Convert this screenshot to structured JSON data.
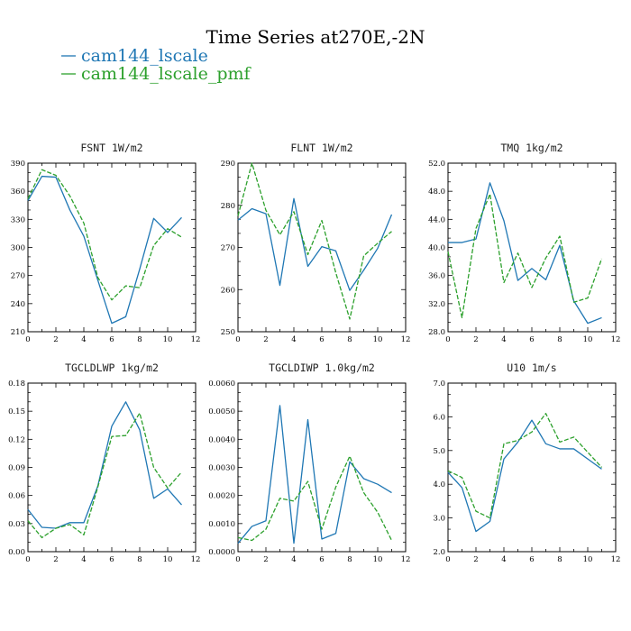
{
  "title": "Time Series at270E,-2N",
  "legend": [
    {
      "label": "cam144_lscale",
      "color": "#1f77b4",
      "dash": "solid"
    },
    {
      "label": "cam144_lscale_pmf",
      "color": "#2ca02c",
      "dash": "dashed"
    }
  ],
  "chart_data": [
    {
      "type": "line",
      "title": "FSNT  1W/m2",
      "x": [
        0,
        1,
        2,
        3,
        4,
        5,
        6,
        7,
        8,
        9,
        10,
        11
      ],
      "xticks": [
        "0",
        "2",
        "4",
        "6",
        "8",
        "10",
        "12"
      ],
      "xlim": [
        0,
        12
      ],
      "ylim": [
        210,
        390
      ],
      "yticks": [
        "210",
        "240",
        "270",
        "300",
        "330",
        "360",
        "390"
      ],
      "series": [
        {
          "name": "cam144_lscale",
          "values": [
            350,
            376,
            375,
            340,
            312,
            265,
            219,
            226,
            277,
            331,
            316,
            332
          ]
        },
        {
          "name": "cam144_lscale_pmf",
          "values": [
            352,
            383,
            377,
            355,
            326,
            268,
            244,
            259,
            257,
            302,
            320,
            311
          ]
        }
      ]
    },
    {
      "type": "line",
      "title": "FLNT  1W/m2",
      "x": [
        0,
        1,
        2,
        3,
        4,
        5,
        6,
        7,
        8,
        9,
        10,
        11
      ],
      "xticks": [
        "0",
        "2",
        "4",
        "6",
        "8",
        "10",
        "12"
      ],
      "xlim": [
        0,
        12
      ],
      "ylim": [
        250,
        290
      ],
      "yticks": [
        "250",
        "260",
        "270",
        "280",
        "290"
      ],
      "series": [
        {
          "name": "cam144_lscale",
          "values": [
            276.5,
            279.2,
            278,
            261,
            281.6,
            265.5,
            270.2,
            269.2,
            259.8,
            264.6,
            269.8,
            277.8
          ]
        },
        {
          "name": "cam144_lscale_pmf",
          "values": [
            277.5,
            290,
            278.8,
            273,
            278.5,
            268.3,
            276.4,
            264,
            253,
            268,
            271,
            273.8
          ]
        }
      ]
    },
    {
      "type": "line",
      "title": "TMQ  1kg/m2",
      "x": [
        0,
        1,
        2,
        3,
        4,
        5,
        6,
        7,
        8,
        9,
        10,
        11
      ],
      "xticks": [
        "0",
        "2",
        "4",
        "6",
        "8",
        "10",
        "12"
      ],
      "xlim": [
        0,
        12
      ],
      "ylim": [
        28,
        52
      ],
      "yticks": [
        "28.0",
        "32.0",
        "36.0",
        "40.0",
        "44.0",
        "48.0",
        "52.0"
      ],
      "series": [
        {
          "name": "cam144_lscale",
          "values": [
            40.7,
            40.7,
            41.2,
            49.2,
            43.8,
            35.3,
            37,
            35.4,
            40.3,
            32.4,
            29.2,
            30
          ]
        },
        {
          "name": "cam144_lscale_pmf",
          "values": [
            39.4,
            30,
            42.7,
            47.6,
            35,
            39.2,
            34.3,
            38.5,
            41.6,
            32.2,
            32.8,
            38.4
          ]
        }
      ]
    },
    {
      "type": "line",
      "title": "TGCLDLWP  1kg/m2",
      "x": [
        0,
        1,
        2,
        3,
        4,
        5,
        6,
        7,
        8,
        9,
        10,
        11
      ],
      "xticks": [
        "0",
        "2",
        "4",
        "6",
        "8",
        "10",
        "12"
      ],
      "xlim": [
        0,
        12
      ],
      "ylim": [
        0,
        0.18
      ],
      "yticks": [
        "0.00",
        "0.03",
        "0.06",
        "0.09",
        "0.12",
        "0.15",
        "0.18"
      ],
      "series": [
        {
          "name": "cam144_lscale",
          "values": [
            0.045,
            0.026,
            0.025,
            0.031,
            0.031,
            0.07,
            0.134,
            0.16,
            0.13,
            0.057,
            0.067,
            0.05
          ]
        },
        {
          "name": "cam144_lscale_pmf",
          "values": [
            0.033,
            0.015,
            0.025,
            0.029,
            0.018,
            0.069,
            0.123,
            0.124,
            0.148,
            0.09,
            0.068,
            0.085
          ]
        }
      ]
    },
    {
      "type": "line",
      "title": "TGCLDIWP  1.0kg/m2",
      "x": [
        0,
        1,
        2,
        3,
        4,
        5,
        6,
        7,
        8,
        9,
        10,
        11
      ],
      "xticks": [
        "0",
        "2",
        "4",
        "6",
        "8",
        "10",
        "12"
      ],
      "xlim": [
        0,
        12
      ],
      "ylim": [
        0,
        0.006
      ],
      "yticks": [
        "0.0000",
        "0.0010",
        "0.0020",
        "0.0030",
        "0.0040",
        "0.0050",
        "0.0060"
      ],
      "series": [
        {
          "name": "cam144_lscale",
          "values": [
            0.0003,
            0.0009,
            0.0011,
            0.0052,
            0.0003,
            0.0047,
            0.00045,
            0.00065,
            0.0032,
            0.0026,
            0.0024,
            0.0021
          ]
        },
        {
          "name": "cam144_lscale_pmf",
          "values": [
            0.0005,
            0.0004,
            0.0008,
            0.0019,
            0.0018,
            0.0025,
            0.0008,
            0.0023,
            0.0034,
            0.0021,
            0.0014,
            0.0004
          ]
        }
      ]
    },
    {
      "type": "line",
      "title": "U10  1m/s",
      "x": [
        0,
        1,
        2,
        3,
        4,
        5,
        6,
        7,
        8,
        9,
        10,
        11
      ],
      "xticks": [
        "0",
        "2",
        "4",
        "6",
        "8",
        "10",
        "12"
      ],
      "xlim": [
        0,
        12
      ],
      "ylim": [
        2,
        7
      ],
      "yticks": [
        "2.0",
        "3.0",
        "4.0",
        "5.0",
        "6.0",
        "7.0"
      ],
      "series": [
        {
          "name": "cam144_lscale",
          "values": [
            4.35,
            3.9,
            2.6,
            2.9,
            4.75,
            5.25,
            5.9,
            5.2,
            5.05,
            5.05,
            4.75,
            4.45
          ]
        },
        {
          "name": "cam144_lscale_pmf",
          "values": [
            4.4,
            4.2,
            3.2,
            3.0,
            5.2,
            5.3,
            5.55,
            6.1,
            5.25,
            5.4,
            4.95,
            4.5
          ]
        }
      ]
    }
  ]
}
